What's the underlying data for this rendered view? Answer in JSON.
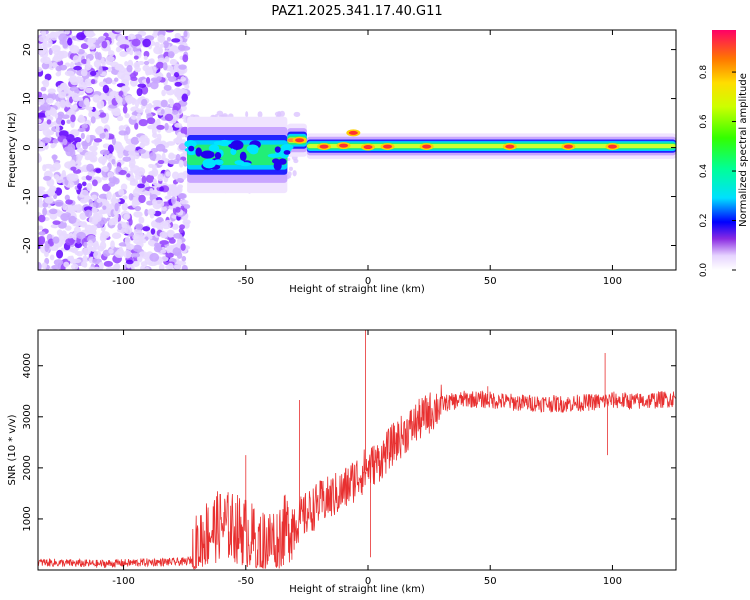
{
  "title": "PAZ1.2025.341.17.40.G11",
  "chart_data": [
    {
      "type": "heatmap",
      "title": "PAZ1.2025.341.17.40.G11",
      "xlabel": "Height of straight line (km)",
      "ylabel": "Frequency (Hz)",
      "xlim": [
        -135,
        126
      ],
      "ylim": [
        -25,
        24
      ],
      "xticks": [
        -100,
        -50,
        0,
        50,
        100
      ],
      "yticks": [
        -20,
        -10,
        0,
        10,
        20
      ],
      "noise_region_km": [
        -135,
        -74
      ],
      "signal_bands": [
        {
          "x0": -74,
          "x1": -33,
          "center": -1.5,
          "halfwidth": 3.0,
          "level": 0.35
        },
        {
          "x0": -33,
          "x1": -25,
          "center": 1.5,
          "halfwidth": 1.3,
          "level": 0.95
        },
        {
          "x0": -25,
          "x1": 126,
          "center": 0.3,
          "halfwidth": 1.0,
          "level": 0.55
        }
      ],
      "hot_spots": [
        {
          "x": -28,
          "f": 1.5
        },
        {
          "x": -18,
          "f": 0.2
        },
        {
          "x": -10,
          "f": 0.4
        },
        {
          "x": -6,
          "f": 3.0
        },
        {
          "x": 0,
          "f": 0.1
        },
        {
          "x": 8,
          "f": 0.2
        },
        {
          "x": 24,
          "f": 0.2
        },
        {
          "x": 58,
          "f": 0.2
        },
        {
          "x": 82,
          "f": 0.2
        },
        {
          "x": 100,
          "f": 0.2
        }
      ],
      "colorbar": {
        "label": "Normalized spectral amplitude",
        "range": [
          0,
          0.97
        ],
        "ticks": [
          0.0,
          0.2,
          0.4,
          0.6,
          0.8
        ]
      }
    },
    {
      "type": "line",
      "xlabel": "Height of straight line (km)",
      "ylabel": "SNR (10 * v/v)",
      "xlim": [
        -135,
        126
      ],
      "ylim": [
        0,
        4700
      ],
      "xticks": [
        -100,
        -50,
        0,
        50,
        100
      ],
      "yticks": [
        1000,
        2000,
        3000,
        4000
      ],
      "color": "#e83030",
      "envelope_x": [
        -135,
        -110,
        -90,
        -75,
        -72,
        -68,
        -60,
        -50,
        -45,
        -40,
        -35,
        -30,
        -25,
        -20,
        -10,
        -5,
        0,
        5,
        10,
        20,
        30,
        40,
        50,
        60,
        80,
        96,
        100,
        110,
        126
      ],
      "envelope_y": [
        150,
        120,
        150,
        160,
        200,
        650,
        900,
        750,
        500,
        550,
        750,
        900,
        1100,
        1300,
        1550,
        1800,
        2000,
        2150,
        2450,
        2900,
        3250,
        3350,
        3330,
        3280,
        3250,
        3300,
        3330,
        3300,
        3360
      ],
      "spikes": [
        {
          "x": -50,
          "y": 2250
        },
        {
          "x": -28,
          "y": 3330
        },
        {
          "x": -1,
          "y": 4700
        },
        {
          "x": 1,
          "y": 250
        },
        {
          "x": 49,
          "y": 3600
        },
        {
          "x": 97,
          "y": 4250
        },
        {
          "x": 98,
          "y": 2250
        }
      ]
    }
  ]
}
